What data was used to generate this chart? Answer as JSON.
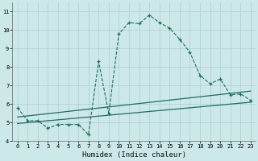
{
  "xlabel": "Humidex (Indice chaleur)",
  "ylabel": "",
  "background_color": "#cde8e8",
  "line_color": "#1a6e64",
  "xlim": [
    -0.5,
    23.5
  ],
  "ylim": [
    4,
    11.5
  ],
  "xticks": [
    0,
    1,
    2,
    3,
    4,
    5,
    6,
    7,
    8,
    9,
    10,
    11,
    12,
    13,
    14,
    15,
    16,
    17,
    18,
    19,
    20,
    21,
    22,
    23
  ],
  "yticks": [
    4,
    5,
    6,
    7,
    8,
    9,
    10,
    11
  ],
  "curve1_x": [
    0,
    1,
    2,
    3,
    4,
    5,
    6,
    7,
    8,
    9,
    10,
    11,
    12,
    13,
    14,
    15,
    16,
    17,
    18,
    19,
    20,
    21,
    22,
    23
  ],
  "curve1_y": [
    5.8,
    5.1,
    5.1,
    4.7,
    4.9,
    4.9,
    4.9,
    4.35,
    8.3,
    5.5,
    9.8,
    10.4,
    10.35,
    10.8,
    10.4,
    10.1,
    9.5,
    8.8,
    7.55,
    7.1,
    7.35,
    6.5,
    6.55,
    6.2
  ],
  "line2_x": [
    0,
    23
  ],
  "line2_y": [
    5.3,
    6.7
  ],
  "line3_x": [
    0,
    23
  ],
  "line3_y": [
    4.95,
    6.1
  ],
  "grid_color": "#afd4d0",
  "tick_fontsize": 5.0,
  "xlabel_fontsize": 6.5
}
